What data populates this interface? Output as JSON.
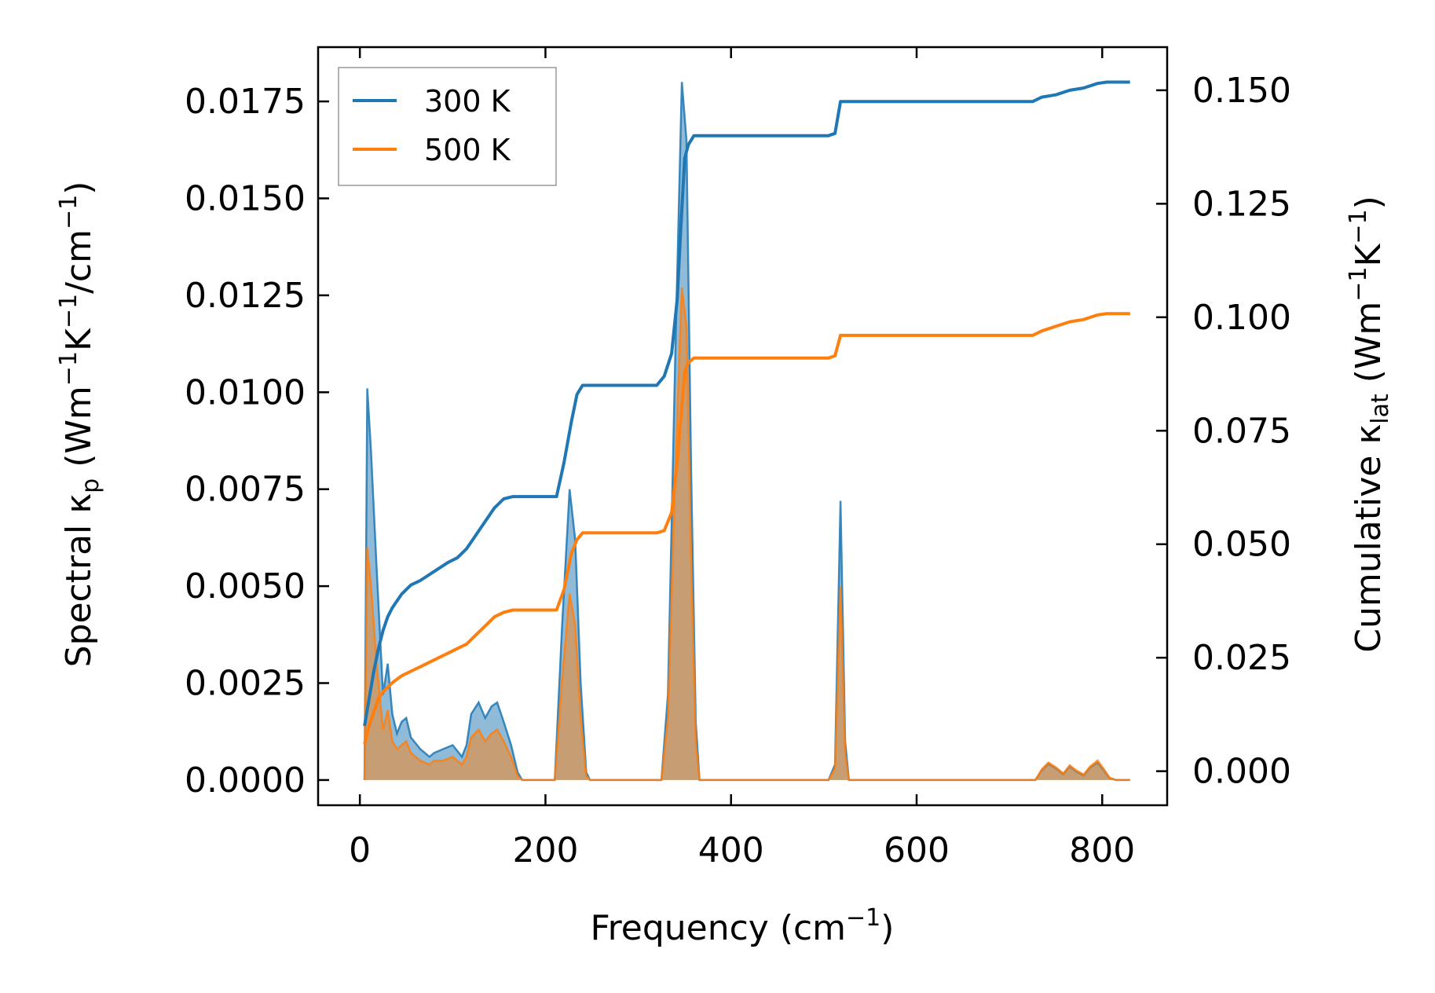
{
  "chart_data": {
    "type": "area",
    "xlabel": "Frequency (cm",
    "xlabel_sup": "−1",
    "xlabel_end": ")",
    "ylabel_left": {
      "a": "Spectral κ",
      "sub": "p",
      "b": " (Wm",
      "sup1": "−1",
      "c": "K",
      "sup2": "−1",
      "d": "/cm",
      "sup3": "−1",
      "e": ")"
    },
    "ylabel_right": {
      "a": "Cumulative κ",
      "sub": "lat",
      "b": " (Wm",
      "sup1": "−1",
      "c": "K",
      "sup2": "−1",
      "d": ")"
    },
    "xlim": [
      -45,
      870
    ],
    "ylim_left": [
      -0.00065,
      0.0189
    ],
    "ylim_right": [
      -0.0075,
      0.1595
    ],
    "x_ticks": [
      0,
      200,
      400,
      600,
      800
    ],
    "x_tick_labels": [
      "0",
      "200",
      "400",
      "600",
      "800"
    ],
    "y_left_ticks": [
      0.0,
      0.0025,
      0.005,
      0.0075,
      0.01,
      0.0125,
      0.015,
      0.0175
    ],
    "y_left_tick_labels": [
      "0.0000",
      "0.0025",
      "0.0050",
      "0.0075",
      "0.0100",
      "0.0125",
      "0.0150",
      "0.0175"
    ],
    "y_right_ticks": [
      0.0,
      0.025,
      0.05,
      0.075,
      0.1,
      0.125,
      0.15
    ],
    "y_right_tick_labels": [
      "0.000",
      "0.025",
      "0.050",
      "0.075",
      "0.100",
      "0.125",
      "0.150"
    ],
    "legend": {
      "position": "upper-left",
      "entries": [
        {
          "label": "300 K",
          "color": "#1f77b4"
        },
        {
          "label": "500 K",
          "color": "#ff7f0e"
        }
      ]
    },
    "spectral_series": [
      {
        "name": "300 K",
        "color": "#1f77b4",
        "points": [
          [
            5,
            0
          ],
          [
            8,
            0.0101
          ],
          [
            12,
            0.0085
          ],
          [
            18,
            0.0055
          ],
          [
            25,
            0.0022
          ],
          [
            30,
            0.003
          ],
          [
            35,
            0.0017
          ],
          [
            40,
            0.0012
          ],
          [
            45,
            0.0015
          ],
          [
            50,
            0.0016
          ],
          [
            55,
            0.0011
          ],
          [
            65,
            0.0008
          ],
          [
            75,
            0.0006
          ],
          [
            80,
            0.0007
          ],
          [
            90,
            0.0008
          ],
          [
            100,
            0.0009
          ],
          [
            110,
            0.0006
          ],
          [
            115,
            0.0009
          ],
          [
            120,
            0.0017
          ],
          [
            128,
            0.002
          ],
          [
            135,
            0.0016
          ],
          [
            142,
            0.0019
          ],
          [
            148,
            0.002
          ],
          [
            155,
            0.0015
          ],
          [
            163,
            0.0009
          ],
          [
            170,
            0.0002
          ],
          [
            175,
            0
          ],
          [
            210,
            0
          ],
          [
            218,
            0.004
          ],
          [
            226,
            0.0075
          ],
          [
            232,
            0.0062
          ],
          [
            238,
            0.0025
          ],
          [
            244,
            0.0002
          ],
          [
            248,
            0
          ],
          [
            325,
            0
          ],
          [
            332,
            0.0022
          ],
          [
            340,
            0.011
          ],
          [
            347,
            0.018
          ],
          [
            352,
            0.0165
          ],
          [
            357,
            0.008
          ],
          [
            362,
            0.0015
          ],
          [
            366,
            0
          ],
          [
            505,
            0
          ],
          [
            512,
            0.0004
          ],
          [
            518,
            0.0072
          ],
          [
            523,
            0.001
          ],
          [
            527,
            0
          ],
          [
            728,
            0
          ],
          [
            735,
            0.00025
          ],
          [
            742,
            0.00042
          ],
          [
            750,
            0.0003
          ],
          [
            758,
            0.00015
          ],
          [
            765,
            0.00035
          ],
          [
            772,
            0.00022
          ],
          [
            780,
            0.00012
          ],
          [
            787,
            0.00032
          ],
          [
            795,
            0.00045
          ],
          [
            800,
            0.0003
          ],
          [
            808,
            5e-05
          ],
          [
            815,
            0
          ],
          [
            830,
            0
          ]
        ]
      },
      {
        "name": "500 K",
        "color": "#ff7f0e",
        "points": [
          [
            5,
            0
          ],
          [
            8,
            0.006
          ],
          [
            12,
            0.005
          ],
          [
            18,
            0.003
          ],
          [
            25,
            0.0013
          ],
          [
            30,
            0.0018
          ],
          [
            35,
            0.001
          ],
          [
            40,
            0.0008
          ],
          [
            45,
            0.0009
          ],
          [
            50,
            0.001
          ],
          [
            55,
            0.0007
          ],
          [
            65,
            0.0005
          ],
          [
            75,
            0.0004
          ],
          [
            80,
            0.0005
          ],
          [
            90,
            0.0005
          ],
          [
            100,
            0.0006
          ],
          [
            110,
            0.0004
          ],
          [
            115,
            0.0006
          ],
          [
            120,
            0.0011
          ],
          [
            128,
            0.0013
          ],
          [
            135,
            0.001
          ],
          [
            142,
            0.0012
          ],
          [
            148,
            0.0013
          ],
          [
            155,
            0.001
          ],
          [
            163,
            0.0006
          ],
          [
            170,
            0.0001
          ],
          [
            175,
            0
          ],
          [
            210,
            0
          ],
          [
            218,
            0.0026
          ],
          [
            226,
            0.0048
          ],
          [
            232,
            0.004
          ],
          [
            238,
            0.0016
          ],
          [
            244,
            0.0001
          ],
          [
            248,
            0
          ],
          [
            325,
            0
          ],
          [
            332,
            0.0016
          ],
          [
            340,
            0.008
          ],
          [
            347,
            0.0127
          ],
          [
            352,
            0.0117
          ],
          [
            357,
            0.0057
          ],
          [
            362,
            0.001
          ],
          [
            366,
            0
          ],
          [
            505,
            0
          ],
          [
            512,
            0.0003
          ],
          [
            518,
            0.005
          ],
          [
            523,
            0.0007
          ],
          [
            527,
            0
          ],
          [
            728,
            0
          ],
          [
            735,
            0.00028
          ],
          [
            742,
            0.00045
          ],
          [
            750,
            0.00033
          ],
          [
            758,
            0.00017
          ],
          [
            765,
            0.00038
          ],
          [
            772,
            0.00025
          ],
          [
            780,
            0.00014
          ],
          [
            787,
            0.00035
          ],
          [
            795,
            0.0005
          ],
          [
            800,
            0.00034
          ],
          [
            808,
            6e-05
          ],
          [
            815,
            0
          ],
          [
            830,
            0
          ]
        ]
      }
    ],
    "cumulative_series": [
      {
        "name": "300 K",
        "color": "#1f77b4",
        "points": [
          [
            5,
            0.01
          ],
          [
            10,
            0.016
          ],
          [
            15,
            0.022
          ],
          [
            20,
            0.027
          ],
          [
            25,
            0.031
          ],
          [
            30,
            0.034
          ],
          [
            35,
            0.036
          ],
          [
            45,
            0.039
          ],
          [
            55,
            0.041
          ],
          [
            65,
            0.042
          ],
          [
            80,
            0.044
          ],
          [
            95,
            0.046
          ],
          [
            105,
            0.047
          ],
          [
            115,
            0.049
          ],
          [
            125,
            0.052
          ],
          [
            135,
            0.055
          ],
          [
            145,
            0.058
          ],
          [
            155,
            0.06
          ],
          [
            165,
            0.0605
          ],
          [
            212,
            0.0605
          ],
          [
            220,
            0.068
          ],
          [
            228,
            0.077
          ],
          [
            234,
            0.083
          ],
          [
            240,
            0.085
          ],
          [
            320,
            0.085
          ],
          [
            328,
            0.087
          ],
          [
            336,
            0.092
          ],
          [
            342,
            0.104
          ],
          [
            346,
            0.12
          ],
          [
            350,
            0.135
          ],
          [
            354,
            0.138
          ],
          [
            360,
            0.14
          ],
          [
            505,
            0.14
          ],
          [
            512,
            0.1405
          ],
          [
            518,
            0.1475
          ],
          [
            725,
            0.1475
          ],
          [
            735,
            0.1485
          ],
          [
            750,
            0.149
          ],
          [
            765,
            0.15
          ],
          [
            780,
            0.1505
          ],
          [
            795,
            0.1515
          ],
          [
            805,
            0.1518
          ],
          [
            830,
            0.1518
          ]
        ]
      },
      {
        "name": "500 K",
        "color": "#ff7f0e",
        "points": [
          [
            5,
            0.006
          ],
          [
            10,
            0.01
          ],
          [
            15,
            0.013
          ],
          [
            20,
            0.016
          ],
          [
            25,
            0.0175
          ],
          [
            30,
            0.0185
          ],
          [
            35,
            0.0195
          ],
          [
            45,
            0.021
          ],
          [
            55,
            0.022
          ],
          [
            65,
            0.023
          ],
          [
            80,
            0.0245
          ],
          [
            95,
            0.026
          ],
          [
            105,
            0.027
          ],
          [
            115,
            0.028
          ],
          [
            125,
            0.03
          ],
          [
            135,
            0.032
          ],
          [
            145,
            0.034
          ],
          [
            155,
            0.035
          ],
          [
            165,
            0.0355
          ],
          [
            212,
            0.0355
          ],
          [
            220,
            0.04
          ],
          [
            228,
            0.048
          ],
          [
            234,
            0.051
          ],
          [
            240,
            0.0525
          ],
          [
            320,
            0.0525
          ],
          [
            328,
            0.053
          ],
          [
            336,
            0.057
          ],
          [
            342,
            0.068
          ],
          [
            346,
            0.078
          ],
          [
            350,
            0.088
          ],
          [
            354,
            0.09
          ],
          [
            360,
            0.091
          ],
          [
            505,
            0.091
          ],
          [
            512,
            0.0915
          ],
          [
            518,
            0.096
          ],
          [
            725,
            0.096
          ],
          [
            735,
            0.097
          ],
          [
            750,
            0.098
          ],
          [
            765,
            0.099
          ],
          [
            780,
            0.0995
          ],
          [
            795,
            0.1005
          ],
          [
            805,
            0.1008
          ],
          [
            830,
            0.1008
          ]
        ]
      }
    ],
    "grid": false
  }
}
